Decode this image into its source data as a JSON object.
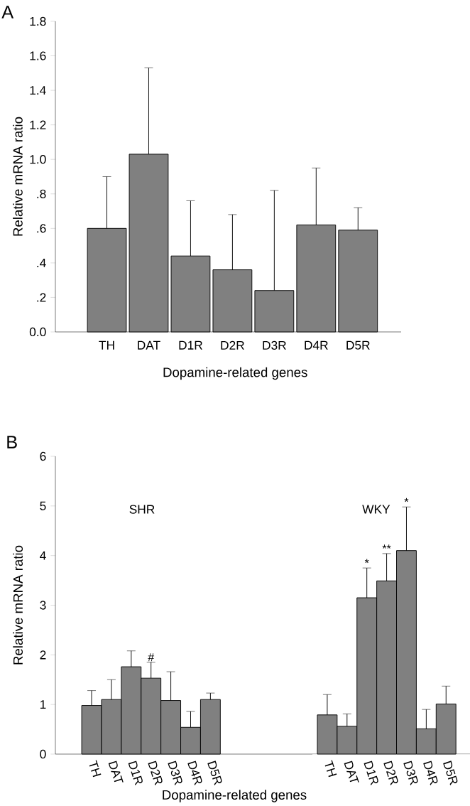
{
  "chart_data": [
    {
      "type": "bar",
      "title": "A",
      "xlabel": "Dopamine-related genes",
      "ylabel": "Relative mRNA ratio",
      "categories": [
        "TH",
        "DAT",
        "D1R",
        "D2R",
        "D3R",
        "D4R",
        "D5R"
      ],
      "values": [
        0.6,
        1.03,
        0.44,
        0.36,
        0.24,
        0.62,
        0.59
      ],
      "errors": [
        0.3,
        0.5,
        0.32,
        0.32,
        0.58,
        0.33,
        0.13
      ],
      "color": "#808080",
      "ylim": [
        0,
        1.8
      ],
      "yticks": [
        {
          "value": 0,
          "label": "0.0"
        },
        {
          "value": 0.2,
          "label": ".2"
        },
        {
          "value": 0.4,
          "label": ".4"
        },
        {
          "value": 0.6,
          "label": ".6"
        },
        {
          "value": 0.8,
          "label": ".8"
        },
        {
          "value": 1.0,
          "label": "1.0"
        },
        {
          "value": 1.2,
          "label": "1.2"
        },
        {
          "value": 1.4,
          "label": "1.4"
        },
        {
          "value": 1.6,
          "label": "1.6"
        },
        {
          "value": 1.8,
          "label": "1.8"
        }
      ]
    },
    {
      "type": "bar",
      "title": "B",
      "subtitle": "SHR",
      "xlabel": "Dopamine-related genes",
      "ylabel": "Relative mRNA ratio",
      "categories": [
        "TH",
        "DAT",
        "D1R",
        "D2R",
        "D3R",
        "D4R",
        "D5R"
      ],
      "values": [
        0.98,
        1.1,
        1.76,
        1.53,
        1.08,
        0.54,
        1.1
      ],
      "errors": [
        0.3,
        0.4,
        0.32,
        0.32,
        0.58,
        0.32,
        0.13
      ],
      "color": "#808080",
      "ylim": [
        0,
        6
      ],
      "yticks": [
        0,
        1,
        2,
        3,
        4,
        5,
        6
      ],
      "annotations": [
        {
          "text": "#",
          "x": "D2R",
          "y": 1.85
        }
      ]
    },
    {
      "type": "bar",
      "title": "WKY",
      "categories": [
        "TH",
        "DAT",
        "D1R",
        "D2R",
        "D3R",
        "D4R",
        "D5R"
      ],
      "values": [
        0.79,
        0.56,
        3.15,
        3.49,
        4.1,
        0.51,
        1.01
      ],
      "errors": [
        0.41,
        0.25,
        0.6,
        0.55,
        0.88,
        0.39,
        0.36
      ],
      "color": "#808080",
      "ylim": [
        0,
        6
      ],
      "tick_labels": "x",
      "annotations": [
        {
          "text": "*",
          "x": "D1R",
          "y": 3.75
        },
        {
          "text": "**",
          "x": "D2R",
          "y": 4.04
        },
        {
          "text": "*",
          "x": "D3R",
          "y": 4.98
        }
      ]
    }
  ]
}
